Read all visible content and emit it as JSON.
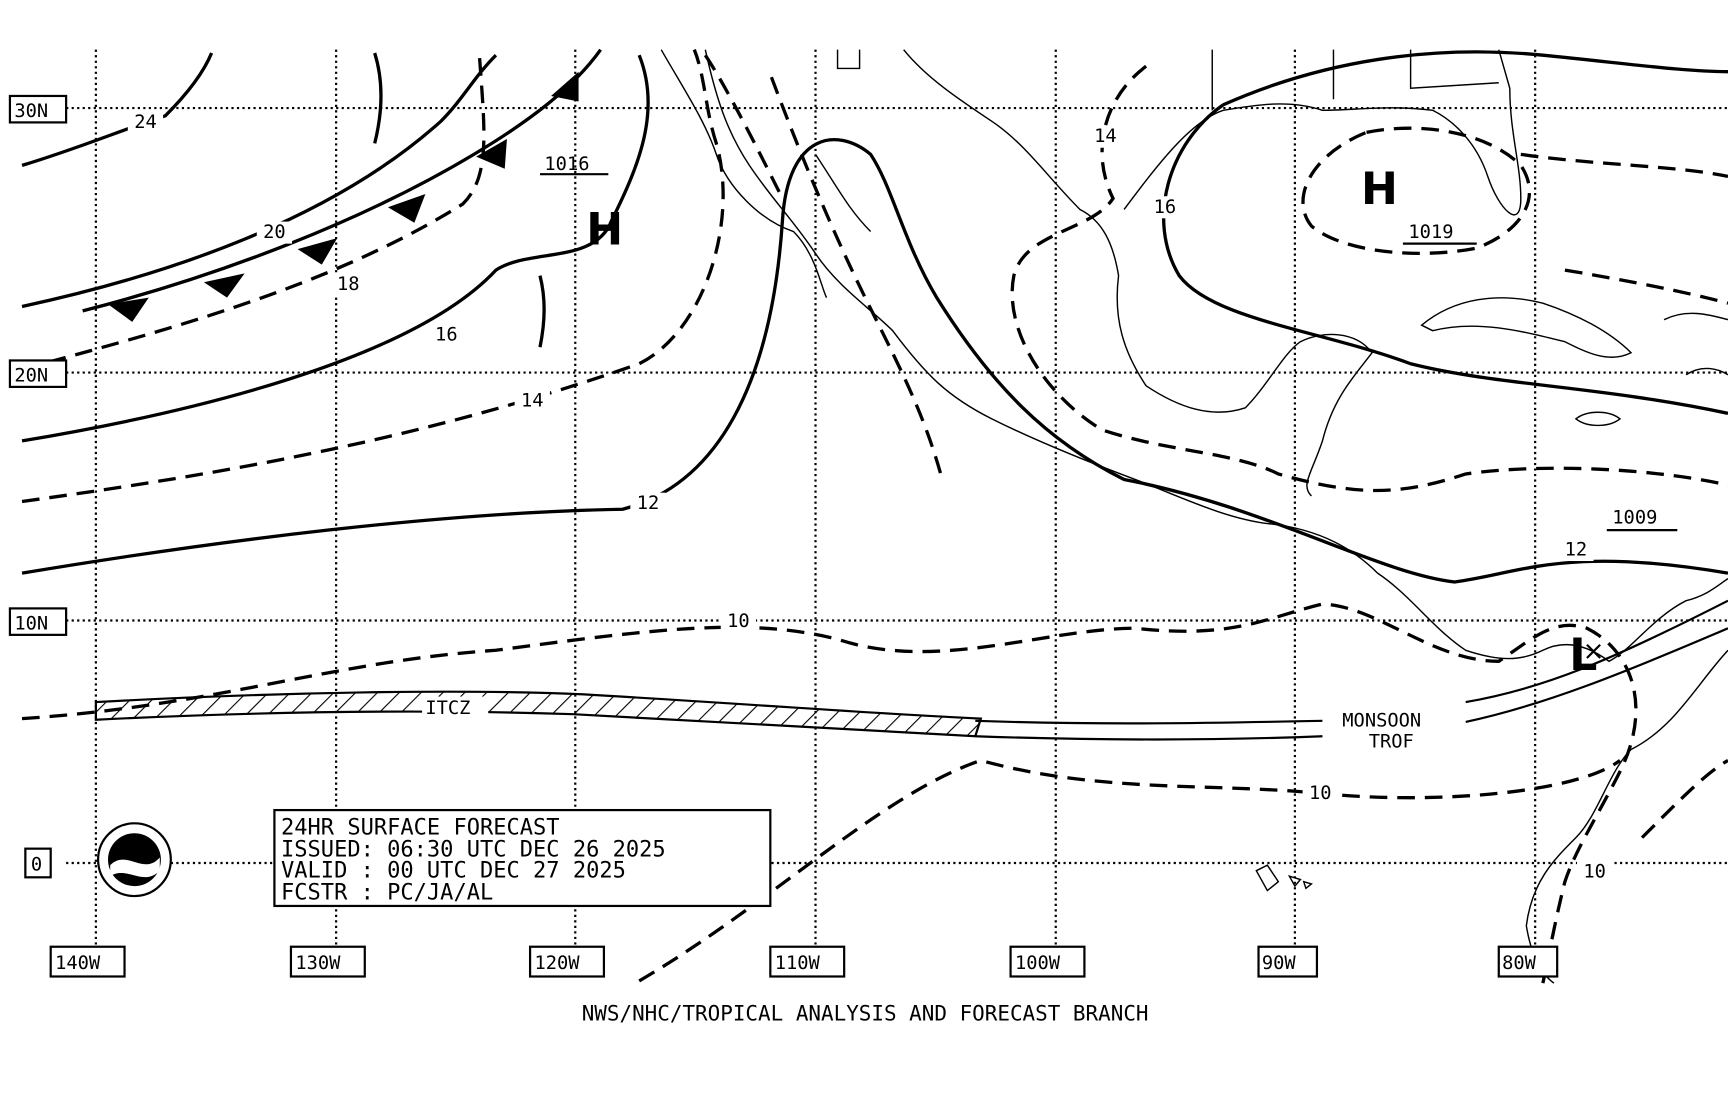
{
  "grid": {
    "lat_labels": [
      "30N",
      "20N",
      "10N",
      "0"
    ],
    "lon_labels": [
      "140W",
      "130W",
      "120W",
      "110W",
      "100W",
      "90W",
      "80W"
    ]
  },
  "isobar_labels": [
    "24",
    "20",
    "18",
    "16",
    "14",
    "12",
    "10",
    "14",
    "16",
    "12",
    "10",
    "10"
  ],
  "pressure_centers": [
    {
      "symbol": "H",
      "pressure": "1016"
    },
    {
      "symbol": "H",
      "pressure": "1019"
    },
    {
      "symbol": "L",
      "pressure": "1009"
    }
  ],
  "features": {
    "itcz": "ITCZ",
    "monsoon_trough": [
      "MONSOON",
      "TROF"
    ]
  },
  "forecast_box": [
    "24HR SURFACE FORECAST",
    "ISSUED: 06:30 UTC DEC 26 2025",
    "VALID : 00 UTC DEC 27 2025",
    "FCSTR : PC/JA/AL"
  ],
  "footer": "NWS/NHC/TROPICAL ANALYSIS AND FORECAST BRANCH"
}
